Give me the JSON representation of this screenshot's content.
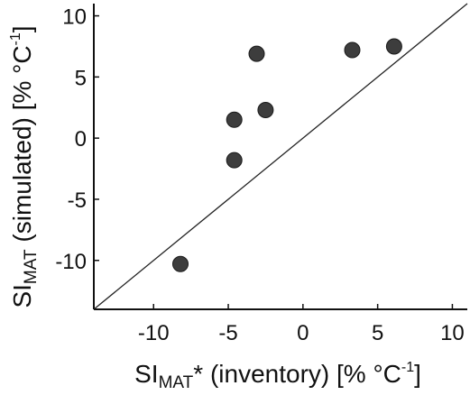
{
  "chart_data": {
    "type": "scatter",
    "title": "",
    "xlabel": {
      "main": "SI",
      "sub": "MAT",
      "after": "* (inventory) [% °C",
      "sup": "-1",
      "close": "]"
    },
    "ylabel": {
      "main": "SI",
      "sub": "MAT",
      "after": " (simulated) [% °C",
      "sup": "-1",
      "close": "]"
    },
    "xlim": [
      -14,
      11
    ],
    "ylim": [
      -14,
      11
    ],
    "xticks": [
      -10,
      -5,
      0,
      5,
      10
    ],
    "yticks": [
      -10,
      -5,
      0,
      5,
      10
    ],
    "xtick_labels": [
      "-10",
      "-5",
      "0",
      "5",
      "10"
    ],
    "ytick_labels": [
      "-10",
      "-5",
      "0",
      "5",
      "10"
    ],
    "grid": false,
    "reference_line": "1:1",
    "series": [
      {
        "color": "#3d3d3d",
        "points": [
          {
            "x": -8.2,
            "y": -10.3
          },
          {
            "x": -4.6,
            "y": 1.5
          },
          {
            "x": -4.6,
            "y": -1.8
          },
          {
            "x": -3.1,
            "y": 6.9
          },
          {
            "x": -2.5,
            "y": 2.3
          },
          {
            "x": 3.3,
            "y": 7.2
          },
          {
            "x": 6.1,
            "y": 7.5
          }
        ]
      }
    ]
  }
}
